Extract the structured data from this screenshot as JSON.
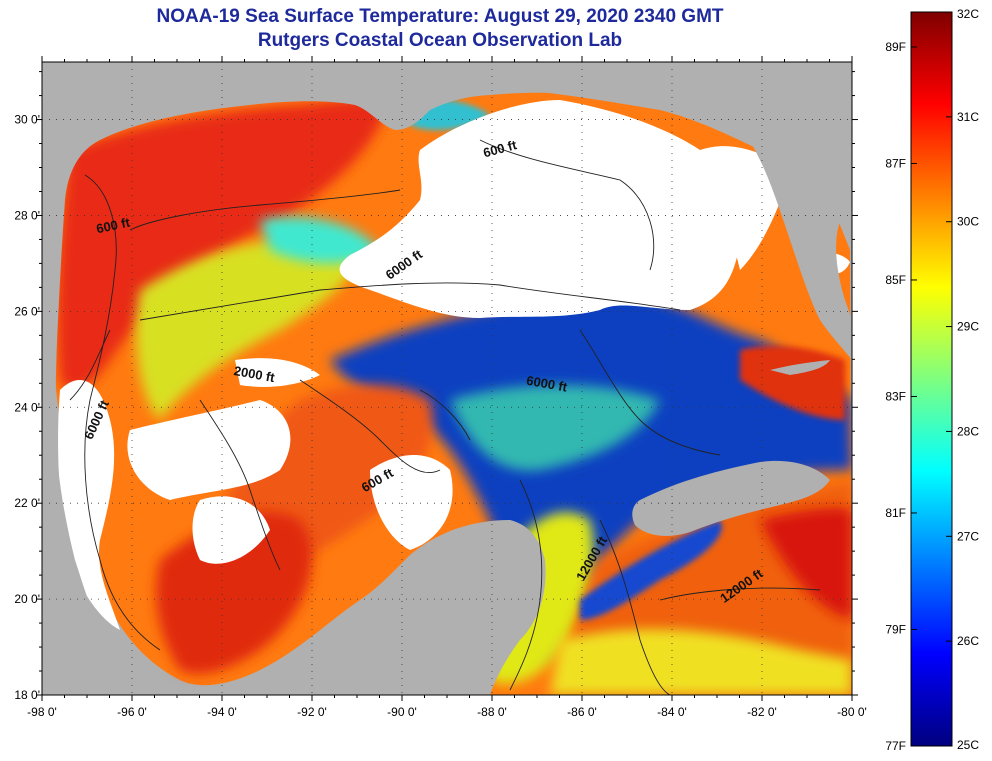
{
  "title": {
    "line1": "NOAA-19 Sea Surface Temperature:  August 29, 2020 2340 GMT",
    "line2": "Rutgers Coastal Ocean Observation Lab"
  },
  "axes": {
    "x_ticks": [
      "-98 0'",
      "-96 0'",
      "-94 0'",
      "-92 0'",
      "-90 0'",
      "-88 0'",
      "-86 0'",
      "-84 0'",
      "-82 0'",
      "-80 0'"
    ],
    "y_ticks": [
      "30 0'",
      "28 0'",
      "26 0'",
      "24 0'",
      "22 0'",
      "20 0'",
      "18 0'"
    ],
    "lon_range": [
      -98,
      -80
    ],
    "lat_range": [
      18,
      31.2
    ]
  },
  "contour_labels": [
    {
      "text": "600 ft",
      "lon": -96.4,
      "lat": 27.7,
      "angle": -12
    },
    {
      "text": "600 ft",
      "lon": -87.8,
      "lat": 29.3,
      "angle": -15
    },
    {
      "text": "6000 ft",
      "lon": -89.9,
      "lat": 26.9,
      "angle": -35
    },
    {
      "text": "2000 ft",
      "lon": -93.3,
      "lat": 24.6,
      "angle": 10
    },
    {
      "text": "6000 ft",
      "lon": -86.8,
      "lat": 24.4,
      "angle": 10
    },
    {
      "text": "6000 ft",
      "lon": -96.7,
      "lat": 23.7,
      "angle": -65
    },
    {
      "text": "600 ft",
      "lon": -90.5,
      "lat": 22.4,
      "angle": -30
    },
    {
      "text": "12000 ft",
      "lon": -85.7,
      "lat": 20.8,
      "angle": -60
    },
    {
      "text": "12000 ft",
      "lon": -82.4,
      "lat": 20.2,
      "angle": -35
    }
  ],
  "colorbar": {
    "celsius_labels": [
      "32C",
      "31C",
      "30C",
      "29C",
      "28C",
      "27C",
      "26C",
      "25C"
    ],
    "fahrenheit_labels": [
      "89F",
      "87F",
      "85F",
      "83F",
      "81F",
      "79F",
      "77F"
    ],
    "range_c": [
      25,
      32
    ],
    "colors": [
      "#00007f",
      "#0000ff",
      "#007fff",
      "#00ffff",
      "#7fff7f",
      "#ffff00",
      "#ff7f00",
      "#ff0000",
      "#7f0000"
    ]
  },
  "colors": {
    "land": "#b0b0b0",
    "cloud": "#ffffff",
    "title": "#1e2a9c"
  }
}
